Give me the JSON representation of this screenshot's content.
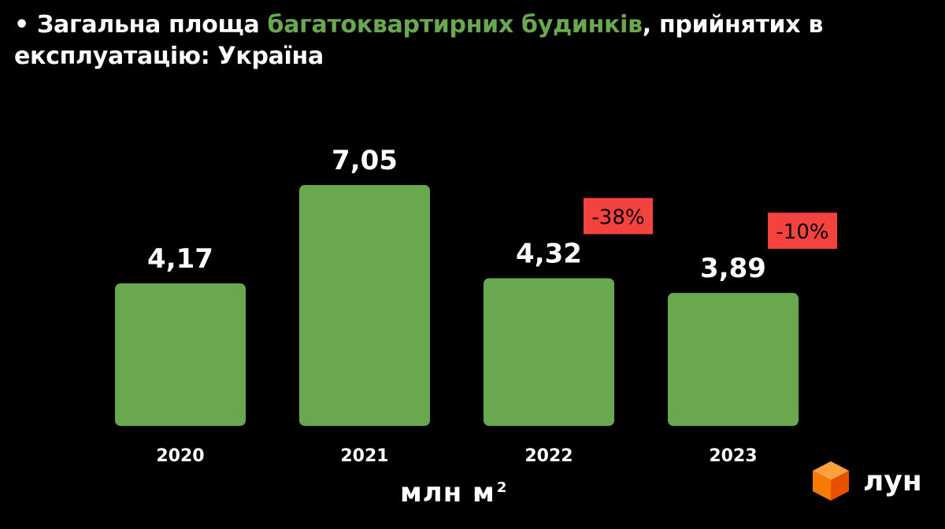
{
  "title": {
    "bullet": "•",
    "part1": "Загальна площа",
    "highlight": "багатоквартирних будинків",
    "part2": ", прийнятих в експлуатацію: Україна"
  },
  "unit": {
    "base": "млн  м",
    "sup": "2"
  },
  "logo": {
    "text": "лун",
    "icon": "orange-cube-icon"
  },
  "colors": {
    "bar": "#6aa84f",
    "highlight": "#6aa84f",
    "change_bg": "#f4433f",
    "background": "#000000"
  },
  "chart_data": {
    "type": "bar",
    "categories": [
      "2020",
      "2021",
      "2022",
      "2023"
    ],
    "values": [
      4.17,
      7.05,
      4.32,
      3.89
    ],
    "value_labels": [
      "4,17",
      "7,05",
      "4,32",
      "3,89"
    ],
    "change_labels": [
      "",
      "",
      "-38%",
      "-10%"
    ],
    "unit": "млн м²",
    "grid": false,
    "legend": "none"
  }
}
